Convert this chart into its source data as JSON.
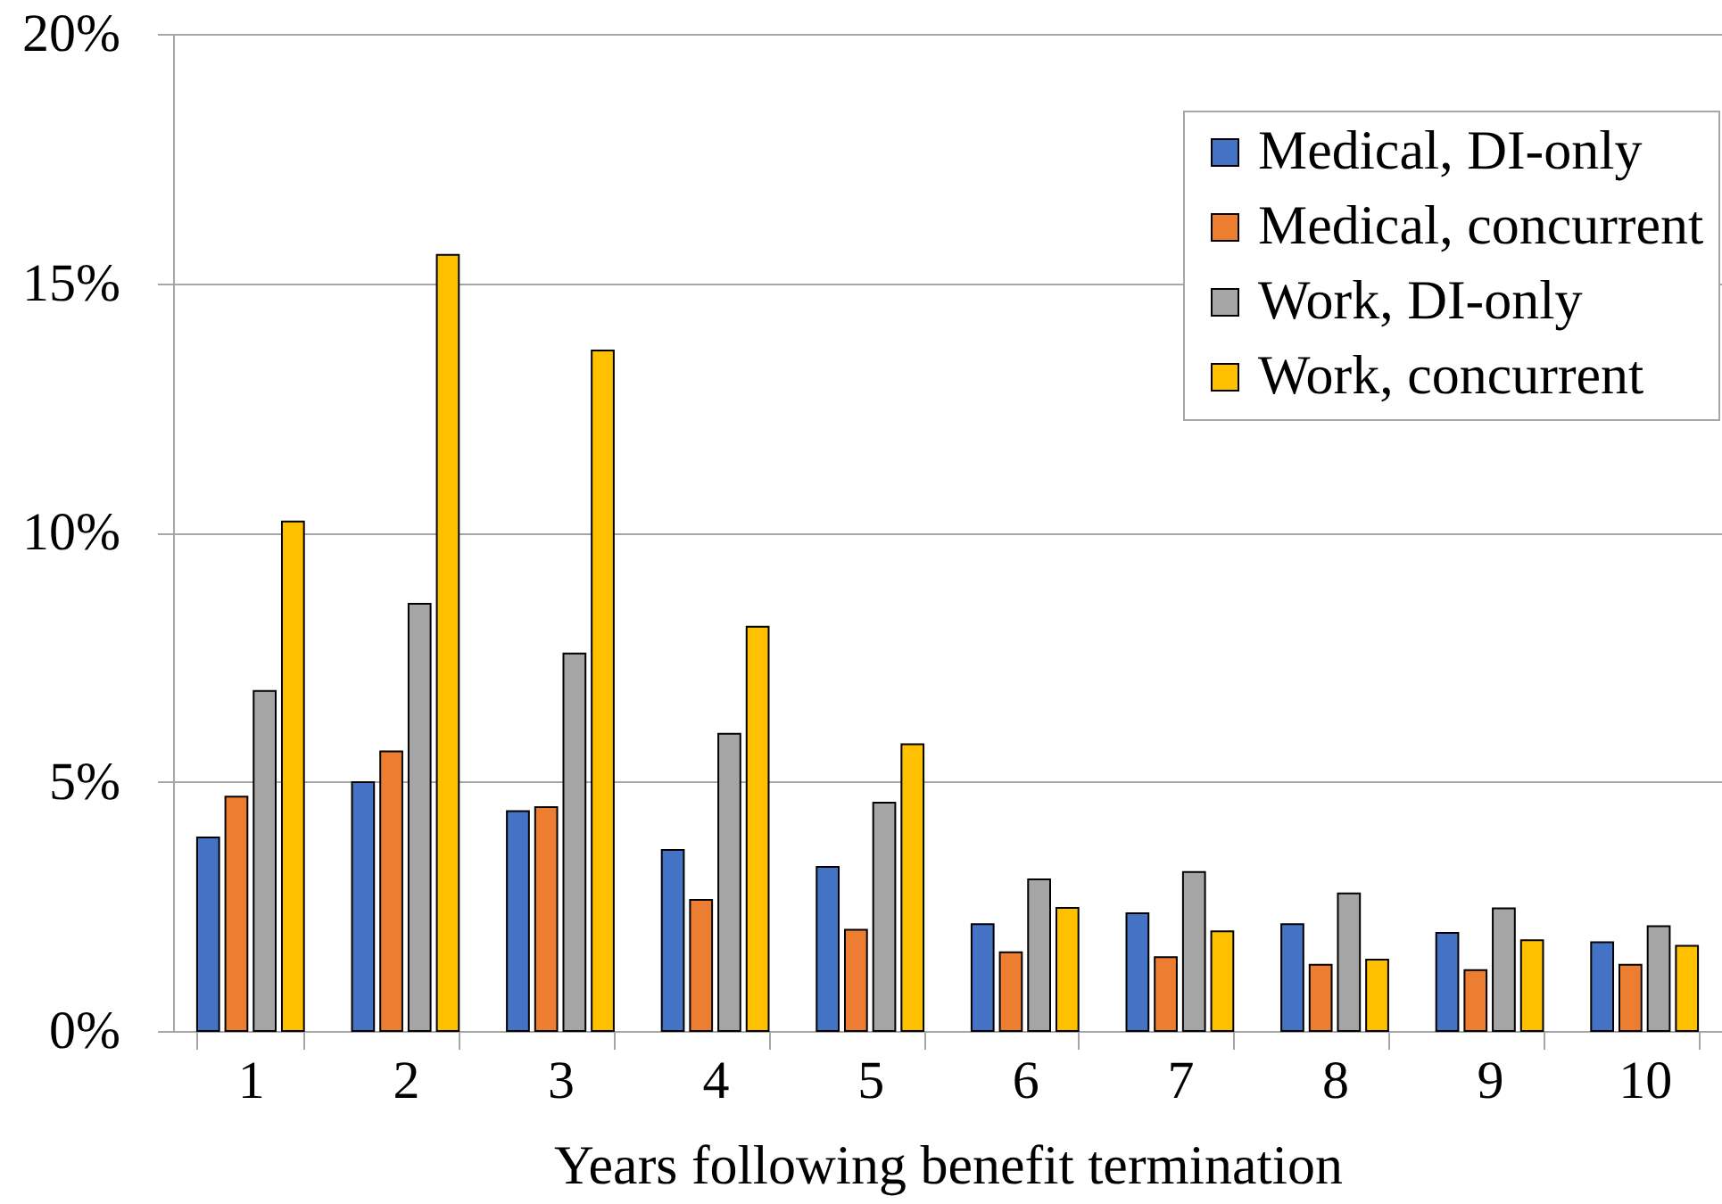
{
  "chart_data": {
    "type": "bar",
    "xlabel": "Years following benefit termination",
    "categories": [
      "1",
      "2",
      "3",
      "4",
      "5",
      "6",
      "7",
      "8",
      "9",
      "10"
    ],
    "series": [
      {
        "name": "Medical, DI-only",
        "color": "#4472c4",
        "values": [
          3.88,
          4.99,
          4.41,
          3.63,
          3.29,
          2.14,
          2.36,
          2.14,
          1.97,
          1.78
        ]
      },
      {
        "name": "Medical, concurrent",
        "color": "#ed7d31",
        "values": [
          4.7,
          5.61,
          4.49,
          2.63,
          2.03,
          1.58,
          1.48,
          1.33,
          1.22,
          1.33
        ]
      },
      {
        "name": "Work, DI-only",
        "color": "#a5a5a5",
        "values": [
          6.82,
          8.57,
          7.57,
          5.96,
          4.58,
          3.04,
          3.19,
          2.76,
          2.46,
          2.1
        ]
      },
      {
        "name": "Work, concurrent",
        "color": "#ffc000",
        "values": [
          10.22,
          15.57,
          13.65,
          8.11,
          5.75,
          2.47,
          2.0,
          1.43,
          1.82,
          1.71
        ]
      }
    ],
    "ylim": [
      0,
      20
    ],
    "yticks": [
      {
        "value": 0,
        "label": "0%"
      },
      {
        "value": 5,
        "label": "5%"
      },
      {
        "value": 10,
        "label": "10%"
      },
      {
        "value": 15,
        "label": "15%"
      },
      {
        "value": 20,
        "label": "20%"
      }
    ],
    "grid": "y",
    "legend": "top right"
  }
}
